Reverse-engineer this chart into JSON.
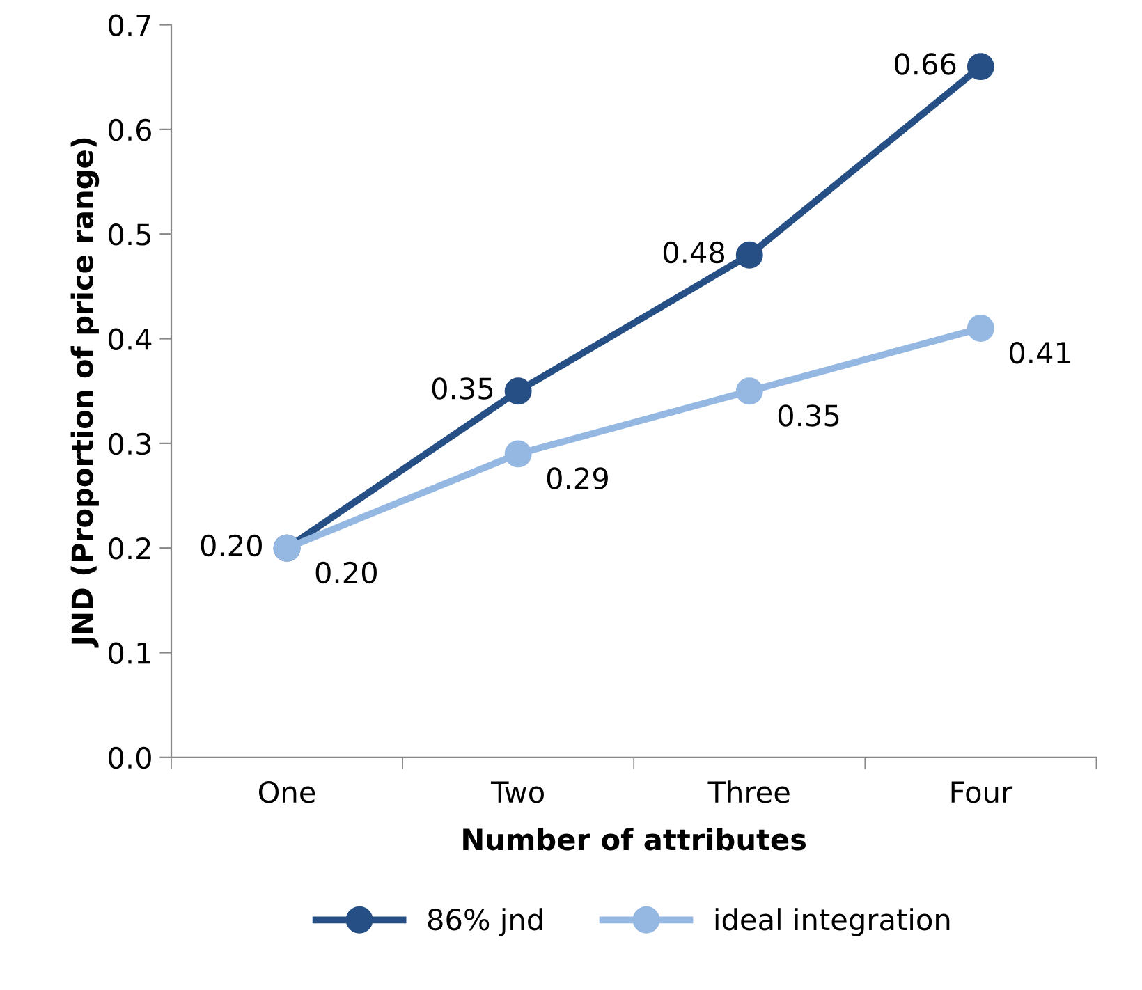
{
  "chart_data": {
    "type": "line",
    "xlabel": "Number of attributes",
    "ylabel": "JND (Proportion of price range)",
    "categories": [
      "One",
      "Two",
      "Three",
      "Four"
    ],
    "series": [
      {
        "name": "86% jnd",
        "color": "#264f85",
        "values": [
          0.2,
          0.35,
          0.48,
          0.66
        ],
        "value_labels": [
          "0.20",
          "0.35",
          "0.48",
          "0.66"
        ]
      },
      {
        "name": "ideal integration",
        "color": "#95b8e3",
        "values": [
          0.2,
          0.29,
          0.35,
          0.41
        ],
        "value_labels": [
          "0.20",
          "0.29",
          "0.35",
          "0.41"
        ]
      }
    ],
    "ylim": [
      0,
      0.7
    ],
    "yticks": [
      {
        "value": 0,
        "label": "0.0"
      },
      0.1,
      0.2,
      0.3,
      0.4,
      0.5,
      0.6,
      0.7
    ],
    "grid": false,
    "legend": "bottom",
    "marker": "circle",
    "line_style": "solid"
  }
}
